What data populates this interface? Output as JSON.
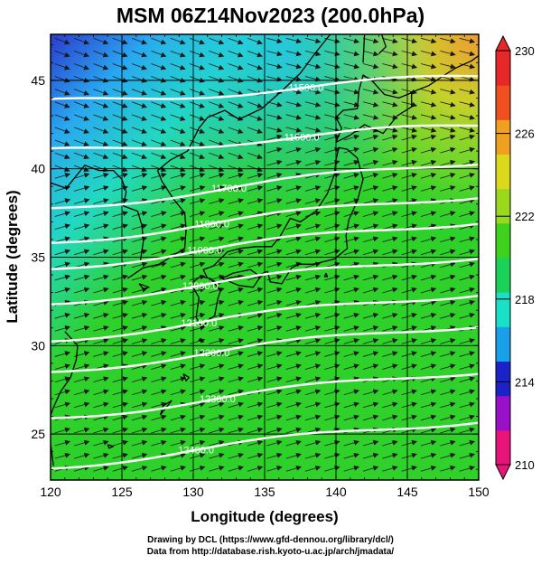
{
  "title": "MSM 06Z14Nov2023 (200.0hPa)",
  "xlabel": "Longitude (degrees)",
  "ylabel": "Latitude  (degrees)",
  "credit_line1": "Drawing by DCL (https://www.gfd-dennou.org/library/dcl/)",
  "credit_line2": "Data from http://database.rish.kyoto-u.ac.jp/arch/jmadata/",
  "map_data": {
    "type": "map",
    "lon_range": [
      120,
      150
    ],
    "lat_range": [
      22.4,
      47.6
    ],
    "lon_ticks": [
      120,
      125,
      130,
      135,
      140,
      145,
      150
    ],
    "lat_ticks": [
      25,
      30,
      35,
      40,
      45
    ],
    "grid_lines": "on (every 5 degrees)",
    "shaded_field": "temperature",
    "colors": {
      "cold_dark": "#2a3bd0",
      "cool_blue": "#29a8f0",
      "cyan": "#22d9e0",
      "green": "#2ed12a",
      "yellow_green": "#b8e02a",
      "orange": "#f09a30"
    },
    "contours": [
      {
        "label": "11500.0",
        "label_lon": 137.9,
        "label_lat": 44.6
      },
      {
        "label": "11600.0",
        "label_lon": 137.6,
        "label_lat": 41.8
      },
      {
        "label": "11700.0",
        "label_lon": 132.5,
        "label_lat": 38.9
      },
      {
        "label": "11800.0",
        "label_lon": 131.3,
        "label_lat": 36.9
      },
      {
        "label": "11900.0",
        "label_lon": 130.8,
        "label_lat": 35.4
      },
      {
        "label": "12000.0",
        "label_lon": 130.5,
        "label_lat": 33.4
      },
      {
        "label": "12100.0",
        "label_lon": 130.4,
        "label_lat": 31.3
      },
      {
        "label": "12200.0",
        "label_lon": 131.3,
        "label_lat": 29.6
      },
      {
        "label": "12300.0",
        "label_lon": 131.7,
        "label_lat": 27.0
      },
      {
        "label": "12400.0",
        "label_lon": 130.2,
        "label_lat": 24.1
      }
    ],
    "wind": "vectors from west / west-south-west",
    "colorbar": {
      "range": [
        210,
        230
      ],
      "labels": [
        "230",
        "226",
        "222",
        "218",
        "214",
        "210"
      ],
      "colors": [
        "#e8147a",
        "#9a10c8",
        "#1a22c8",
        "#1aa0e8",
        "#1ae0c8",
        "#1ad25a",
        "#3ed21e",
        "#9ad81e",
        "#dcd81e",
        "#f0a020",
        "#f05020",
        "#e82828"
      ]
    }
  }
}
